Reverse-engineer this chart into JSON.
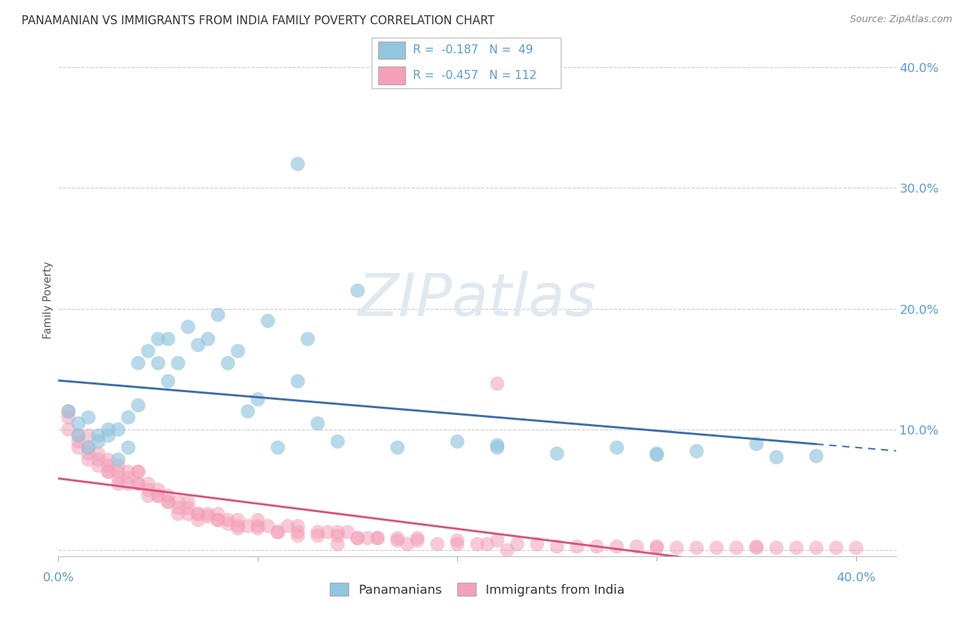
{
  "title": "PANAMANIAN VS IMMIGRANTS FROM INDIA FAMILY POVERTY CORRELATION CHART",
  "source": "Source: ZipAtlas.com",
  "ylabel": "Family Poverty",
  "color_blue": "#92c5de",
  "color_pink": "#f4a0b8",
  "color_blue_line": "#3b6ea8",
  "color_pink_line": "#d9537a",
  "color_axis": "#5b9bd5",
  "r_pan": -0.187,
  "n_pan": 49,
  "r_ind": -0.457,
  "n_ind": 112,
  "xlim": [
    0.0,
    0.42
  ],
  "ylim": [
    -0.005,
    0.42
  ],
  "yticks": [
    0.0,
    0.1,
    0.2,
    0.3,
    0.4
  ],
  "ytick_labels": [
    "",
    "10.0%",
    "20.0%",
    "30.0%",
    "40.0%"
  ],
  "legend_blue_label": "Panamanians",
  "legend_pink_label": "Immigrants from India",
  "pan_x": [
    0.005,
    0.01,
    0.01,
    0.015,
    0.015,
    0.02,
    0.02,
    0.025,
    0.025,
    0.03,
    0.03,
    0.035,
    0.035,
    0.04,
    0.04,
    0.045,
    0.05,
    0.05,
    0.055,
    0.055,
    0.06,
    0.065,
    0.07,
    0.075,
    0.08,
    0.085,
    0.09,
    0.095,
    0.1,
    0.105,
    0.11,
    0.12,
    0.12,
    0.125,
    0.13,
    0.14,
    0.15,
    0.17,
    0.2,
    0.22,
    0.25,
    0.28,
    0.3,
    0.32,
    0.35,
    0.36,
    0.38,
    0.22,
    0.3
  ],
  "pan_y": [
    0.115,
    0.095,
    0.105,
    0.085,
    0.11,
    0.09,
    0.095,
    0.095,
    0.1,
    0.075,
    0.1,
    0.085,
    0.11,
    0.12,
    0.155,
    0.165,
    0.155,
    0.175,
    0.14,
    0.175,
    0.155,
    0.185,
    0.17,
    0.175,
    0.195,
    0.155,
    0.165,
    0.115,
    0.125,
    0.19,
    0.085,
    0.32,
    0.14,
    0.175,
    0.105,
    0.09,
    0.215,
    0.085,
    0.09,
    0.085,
    0.08,
    0.085,
    0.08,
    0.082,
    0.088,
    0.077,
    0.078,
    0.087,
    0.079
  ],
  "ind_x": [
    0.005,
    0.005,
    0.01,
    0.01,
    0.015,
    0.015,
    0.015,
    0.02,
    0.02,
    0.025,
    0.025,
    0.025,
    0.03,
    0.03,
    0.03,
    0.035,
    0.035,
    0.04,
    0.04,
    0.04,
    0.045,
    0.045,
    0.05,
    0.05,
    0.055,
    0.055,
    0.06,
    0.06,
    0.065,
    0.065,
    0.07,
    0.07,
    0.075,
    0.08,
    0.08,
    0.085,
    0.09,
    0.09,
    0.095,
    0.1,
    0.1,
    0.105,
    0.11,
    0.115,
    0.12,
    0.12,
    0.13,
    0.135,
    0.14,
    0.145,
    0.15,
    0.155,
    0.16,
    0.17,
    0.175,
    0.18,
    0.19,
    0.2,
    0.21,
    0.215,
    0.22,
    0.23,
    0.24,
    0.25,
    0.26,
    0.27,
    0.28,
    0.29,
    0.3,
    0.31,
    0.32,
    0.33,
    0.34,
    0.35,
    0.36,
    0.37,
    0.38,
    0.39,
    0.4,
    0.005,
    0.01,
    0.015,
    0.02,
    0.025,
    0.03,
    0.035,
    0.04,
    0.045,
    0.05,
    0.055,
    0.06,
    0.065,
    0.07,
    0.075,
    0.08,
    0.085,
    0.09,
    0.1,
    0.11,
    0.12,
    0.13,
    0.14,
    0.15,
    0.16,
    0.17,
    0.18,
    0.2,
    0.22,
    0.14,
    0.225,
    0.3,
    0.35
  ],
  "ind_y": [
    0.115,
    0.11,
    0.095,
    0.085,
    0.095,
    0.075,
    0.085,
    0.08,
    0.07,
    0.065,
    0.075,
    0.065,
    0.07,
    0.065,
    0.055,
    0.055,
    0.065,
    0.065,
    0.065,
    0.055,
    0.055,
    0.045,
    0.05,
    0.045,
    0.045,
    0.04,
    0.04,
    0.03,
    0.04,
    0.03,
    0.03,
    0.025,
    0.03,
    0.025,
    0.03,
    0.025,
    0.025,
    0.02,
    0.02,
    0.02,
    0.025,
    0.02,
    0.015,
    0.02,
    0.015,
    0.02,
    0.015,
    0.015,
    0.015,
    0.015,
    0.01,
    0.01,
    0.01,
    0.01,
    0.005,
    0.01,
    0.005,
    0.005,
    0.005,
    0.005,
    0.008,
    0.005,
    0.005,
    0.003,
    0.003,
    0.003,
    0.003,
    0.003,
    0.003,
    0.002,
    0.002,
    0.002,
    0.002,
    0.002,
    0.002,
    0.002,
    0.002,
    0.002,
    0.002,
    0.1,
    0.09,
    0.08,
    0.075,
    0.07,
    0.06,
    0.06,
    0.055,
    0.05,
    0.045,
    0.04,
    0.035,
    0.035,
    0.03,
    0.028,
    0.025,
    0.022,
    0.018,
    0.018,
    0.015,
    0.012,
    0.012,
    0.012,
    0.01,
    0.01,
    0.008,
    0.008,
    0.008,
    0.138,
    0.005,
    0.0,
    0.002,
    0.003
  ]
}
